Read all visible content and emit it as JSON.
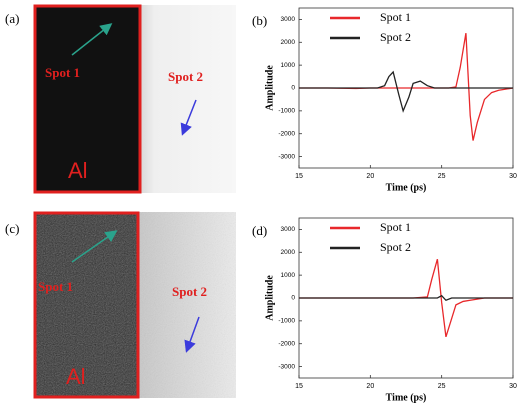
{
  "image_panels": [
    {
      "label": "(a)",
      "spot1": "Spot 1",
      "spot2": "Spot 2",
      "material": "Al"
    },
    {
      "label": "(c)",
      "spot1": "Spot 1",
      "spot2": "Spot 2",
      "material": "Al"
    }
  ],
  "chart_data": [
    {
      "type": "line",
      "panel_label": "(b)",
      "x_label": "Time (ps)",
      "y_label": "Amplitude",
      "x": [
        15,
        17,
        19,
        20,
        20.5,
        21,
        21.3,
        21.6,
        22,
        22.3,
        22.7,
        23,
        23.5,
        24,
        24.5,
        25,
        25.5,
        26,
        26.3,
        26.7,
        27,
        27.2,
        27.5,
        28,
        28.5,
        29,
        30
      ],
      "series": [
        {
          "name": "Spot 1",
          "color": "#e8282b",
          "values": [
            0,
            0,
            -20,
            0,
            0,
            0,
            0,
            0,
            0,
            0,
            0,
            0,
            0,
            0,
            0,
            0,
            0,
            50,
            900,
            2400,
            -1200,
            -2300,
            -1500,
            -500,
            -200,
            -100,
            0
          ]
        },
        {
          "name": "Spot 2",
          "color": "#222222",
          "values": [
            0,
            0,
            0,
            0,
            0,
            100,
            500,
            700,
            -300,
            -1000,
            -400,
            200,
            300,
            100,
            0,
            0,
            0,
            0,
            0,
            0,
            0,
            0,
            0,
            0,
            0,
            0,
            0
          ]
        }
      ],
      "xlim": [
        15,
        30
      ],
      "xticks": [
        15,
        20,
        25,
        30
      ],
      "ylim": [
        -3500,
        3500
      ],
      "yticks": [
        -3000,
        -2000,
        -1000,
        0,
        1000,
        2000,
        3000
      ]
    },
    {
      "type": "line",
      "panel_label": "(d)",
      "x_label": "Time (ps)",
      "y_label": "Amplitude",
      "x": [
        15,
        17,
        19,
        21,
        23,
        24,
        24.3,
        24.7,
        25,
        25.3,
        25.7,
        26,
        26.5,
        27,
        28,
        29,
        30
      ],
      "series": [
        {
          "name": "Spot 1",
          "color": "#e8282b",
          "values": [
            0,
            0,
            0,
            0,
            0,
            50,
            800,
            1700,
            -200,
            -1700,
            -900,
            -300,
            -150,
            -100,
            0,
            0,
            0
          ]
        },
        {
          "name": "Spot 2",
          "color": "#222222",
          "values": [
            0,
            0,
            0,
            0,
            0,
            0,
            0,
            0,
            100,
            -100,
            0,
            0,
            0,
            0,
            0,
            0,
            0
          ]
        }
      ],
      "xlim": [
        15,
        30
      ],
      "xticks": [
        15,
        20,
        25,
        30
      ],
      "ylim": [
        -3500,
        3500
      ],
      "yticks": [
        -3000,
        -2000,
        -1000,
        0,
        1000,
        2000,
        3000
      ]
    }
  ]
}
